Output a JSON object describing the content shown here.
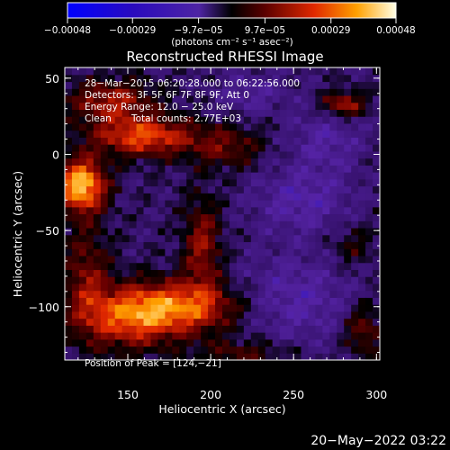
{
  "chart_data": {
    "type": "heatmap",
    "title": "Reconstructed RHESSI Image",
    "xlabel": "Heliocentric X (arcsec)",
    "ylabel": "Heliocentric Y (arcsec)",
    "xlim": [
      112,
      302
    ],
    "ylim": [
      -135,
      57
    ],
    "x_ticks": [
      150,
      200,
      250,
      300
    ],
    "y_ticks": [
      50,
      0,
      -50,
      -100
    ],
    "x_tick_labels": [
      "150",
      "200",
      "250",
      "300"
    ],
    "y_tick_labels": [
      "50",
      "0",
      "−50",
      "−100"
    ],
    "colorbar": {
      "range": [
        -0.00048,
        0.00048
      ],
      "tick_values": [
        -0.00048,
        -0.00029,
        -9.7e-05,
        9.7e-05,
        0.00029,
        0.00048
      ],
      "tick_labels": [
        "−0.00048",
        "−0.00029",
        "−9.7e−05",
        "9.7e−05",
        "0.00029",
        "0.00048"
      ],
      "unit_label": "(photons cm⁻² s⁻¹ asec⁻²)"
    },
    "peak": [
      124,
      -21
    ],
    "sources": [
      {
        "x": 122,
        "y": -20,
        "sx": 10,
        "sy": 12,
        "amp": 0.00048
      },
      {
        "x": 160,
        "y": 12,
        "sx": 22,
        "sy": 9,
        "amp": 0.00033
      },
      {
        "x": 140,
        "y": 35,
        "sx": 18,
        "sy": 10,
        "amp": 0.00024
      },
      {
        "x": 178,
        "y": -100,
        "sx": 28,
        "sy": 12,
        "amp": 0.00036
      },
      {
        "x": 150,
        "y": -110,
        "sx": 20,
        "sy": 14,
        "amp": 0.00022
      },
      {
        "x": 195,
        "y": -60,
        "sx": 8,
        "sy": 22,
        "amp": 0.00022
      },
      {
        "x": 125,
        "y": -80,
        "sx": 10,
        "sy": 25,
        "amp": 0.00018
      },
      {
        "x": 210,
        "y": 5,
        "sx": 15,
        "sy": 10,
        "amp": 0.00016
      },
      {
        "x": 280,
        "y": 33,
        "sx": 9,
        "sy": 6,
        "amp": 0.00026
      },
      {
        "x": 292,
        "y": -115,
        "sx": 8,
        "sy": 12,
        "amp": 0.00018
      },
      {
        "x": 220,
        "y": -130,
        "sx": 20,
        "sy": 6,
        "amp": 0.00014
      },
      {
        "x": 285,
        "y": -60,
        "sx": 10,
        "sy": 10,
        "amp": 0.0001
      },
      {
        "x": 255,
        "y": -30,
        "sx": 20,
        "sy": 15,
        "amp": -0.00014
      },
      {
        "x": 270,
        "y": 10,
        "sx": 15,
        "sy": 15,
        "amp": -0.00012
      },
      {
        "x": 250,
        "y": -95,
        "sx": 25,
        "sy": 20,
        "amp": -0.00014
      },
      {
        "x": 225,
        "y": 40,
        "sx": 15,
        "sy": 10,
        "amp": -0.0001
      }
    ]
  },
  "info": {
    "time_range": "28−Mar−2015 06:20:28.000 to 06:22:56.000",
    "detectors": "Detectors: 3F 5F 6F 7F 8F 9F, Att 0",
    "energy": "Energy Range: 12.0 − 25.0 keV",
    "method": "Clean",
    "total_counts": "Total counts: 2.77E+03",
    "peak_position": "Position of Peak = [124,−21]"
  },
  "footer": {
    "date": "20−May−2022 03:22"
  }
}
